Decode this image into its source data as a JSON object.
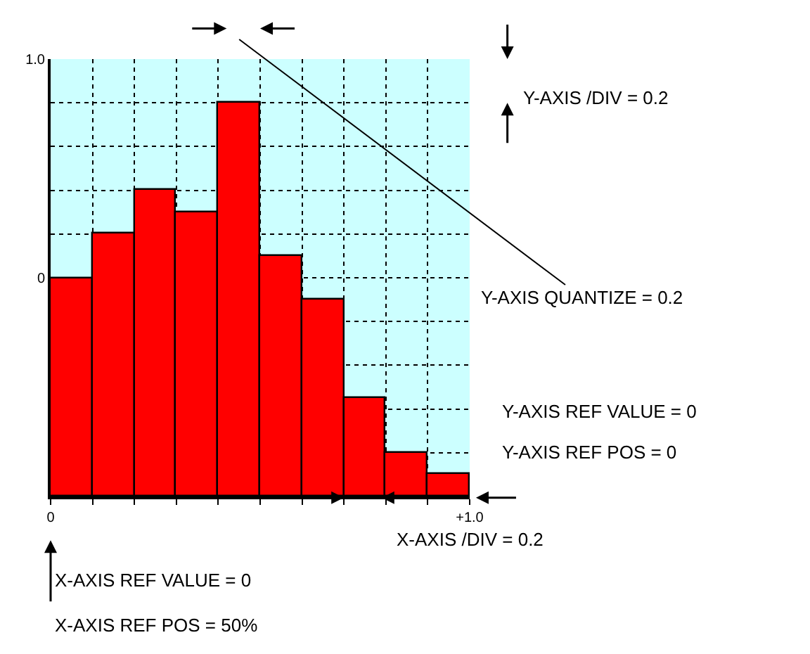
{
  "chart_data": {
    "type": "bar",
    "x": [
      0.05,
      0.15,
      0.25,
      0.35,
      0.45,
      0.55,
      0.65,
      0.75,
      0.85,
      0.95
    ],
    "base": [
      -1,
      -1,
      -1,
      -1,
      -1,
      -1,
      -1,
      -1,
      -1,
      -1
    ],
    "values": [
      1.0,
      1.2,
      1.4,
      1.3,
      1.8,
      1.1,
      0.9,
      0.45,
      0.2,
      0.1
    ],
    "color": "#ff0000",
    "xlim": [
      0,
      1
    ],
    "xticks": [
      0,
      {
        "value": 0.1,
        "label": null
      },
      {
        "value": 0.2,
        "label": null
      },
      {
        "value": 0.3,
        "label": null
      },
      {
        "value": 0.4,
        "label": null
      },
      {
        "value": 0.5,
        "label": null
      },
      {
        "value": 0.6,
        "label": null
      },
      {
        "value": 0.7,
        "label": null
      },
      {
        "value": 0.8,
        "label": null
      },
      {
        "value": 0.9,
        "label": null
      },
      {
        "value": 1,
        "label": "+1.0"
      }
    ],
    "ylim": [
      -1,
      1
    ],
    "yticks": [
      {
        "value": -1,
        "label": null
      },
      {
        "value": -0.8,
        "label": null
      },
      {
        "value": -0.6,
        "label": null
      },
      {
        "value": -0.4,
        "label": null
      },
      {
        "value": -0.2,
        "label": null
      },
      0,
      {
        "value": 0.2,
        "label": null
      },
      {
        "value": 0.4,
        "label": null
      },
      {
        "value": 0.6,
        "label": null
      },
      {
        "value": 0.8,
        "label": null
      },
      {
        "value": 1,
        "label": "1.0"
      }
    ],
    "grid": true,
    "annotations": [
      "Y-AXIS /DIV = 0.2",
      "Y-AXIS QUANTIZE = 0.2",
      "Y-AXIS REF VALUE = 0",
      "Y-AXIS REF POS = 0",
      "X-AXIS /DIV = 0.2",
      "X-AXIS REF VALUE = 0",
      "X-AXIS REF POS = 50%"
    ]
  }
}
